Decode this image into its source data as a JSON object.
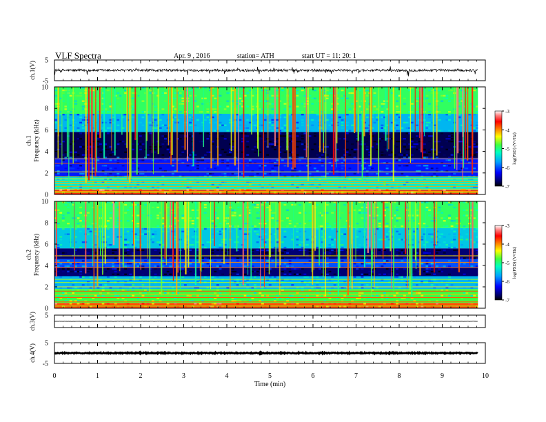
{
  "header": {
    "title": "VLF Spectra",
    "date": "Apr. 9  , 2016",
    "station": "station= ATH",
    "start": "start  UT =    11: 20: 1"
  },
  "chart_data": [
    {
      "type": "line",
      "panel": "ch1-waveform",
      "ylabel": "ch.1(V)",
      "ylim": [
        -5,
        5
      ],
      "yticks": [
        "5",
        "-5"
      ],
      "xlim": [
        0,
        10
      ],
      "mean_level": 0,
      "amplitude": 0.6,
      "spike_amplitude": 2.5
    },
    {
      "type": "heatmap",
      "panel": "ch1-spectrogram",
      "ylabel": "ch.1\nFrequency (kHz)",
      "ylim": [
        0,
        10
      ],
      "yticks": [
        "0",
        "2",
        "4",
        "6",
        "8",
        "10"
      ],
      "xlim": [
        0,
        10
      ],
      "data_xmax": 9.83,
      "colorbar": {
        "label": "log(PSD) (V²/Hz)",
        "range": [
          -7,
          -3
        ],
        "ticks": [
          "-3",
          "-4",
          "-5",
          "-6",
          "-7"
        ]
      },
      "bands": [
        {
          "f0": 0,
          "f1": 0.4,
          "level": -3.6
        },
        {
          "f0": 0.4,
          "f1": 1.6,
          "level": -5.3
        },
        {
          "f0": 1.6,
          "f1": 3.4,
          "level": -6.2
        },
        {
          "f0": 3.4,
          "f1": 5.8,
          "level": -6.8
        },
        {
          "f0": 5.8,
          "f1": 7.5,
          "level": -5.6
        },
        {
          "f0": 7.5,
          "f1": 10,
          "level": -4.9
        }
      ],
      "lines_khz": [
        0.15,
        0.3,
        0.5,
        0.75,
        1.0,
        1.2,
        1.45,
        1.7,
        2.1,
        2.9,
        3.3
      ]
    },
    {
      "type": "heatmap",
      "panel": "ch2-spectrogram",
      "ylabel": "ch.2\nFrequency (kHz)",
      "ylim": [
        0,
        10
      ],
      "yticks": [
        "0",
        "2",
        "4",
        "6",
        "8",
        "10"
      ],
      "xlim": [
        0,
        10
      ],
      "data_xmax": 9.83,
      "colorbar": {
        "label": "log(PSD) (V²/Hz)",
        "range": [
          -7,
          -3
        ],
        "ticks": [
          "-3",
          "-4",
          "-5",
          "-6",
          "-7"
        ]
      },
      "bands": [
        {
          "f0": 0,
          "f1": 0.5,
          "level": -3.8
        },
        {
          "f0": 0.5,
          "f1": 1.8,
          "level": -4.8
        },
        {
          "f0": 1.8,
          "f1": 3.0,
          "level": -5.6
        },
        {
          "f0": 3.0,
          "f1": 3.8,
          "level": -6.7
        },
        {
          "f0": 3.8,
          "f1": 4.6,
          "level": -6.0
        },
        {
          "f0": 4.6,
          "f1": 5.6,
          "level": -6.7
        },
        {
          "f0": 5.6,
          "f1": 7.5,
          "level": -5.5
        },
        {
          "f0": 7.5,
          "f1": 10,
          "level": -4.9
        }
      ],
      "lines_khz": [
        0.2,
        0.6,
        1.0,
        1.3,
        1.6,
        2.0,
        2.4,
        2.7,
        3.8,
        4.3,
        4.9
      ]
    },
    {
      "type": "line",
      "panel": "ch3-waveform",
      "ylabel": "ch.3(V)",
      "ylim": [
        -5,
        5
      ],
      "yticks": [
        "5"
      ],
      "xlim": [
        0,
        10
      ],
      "mean_level": 0,
      "amplitude": 0.05
    },
    {
      "type": "line",
      "panel": "ch4-waveform",
      "ylabel": "ch.4(V)",
      "ylim": [
        -5,
        5
      ],
      "yticks": [
        "5",
        "-5"
      ],
      "xlim": [
        0,
        10
      ],
      "mean_level": 0,
      "amplitude": 0.25,
      "xlabel": "Time  (min)",
      "xticks": [
        "0",
        "1",
        "2",
        "3",
        "4",
        "5",
        "6",
        "7",
        "8",
        "9",
        "10"
      ]
    }
  ]
}
